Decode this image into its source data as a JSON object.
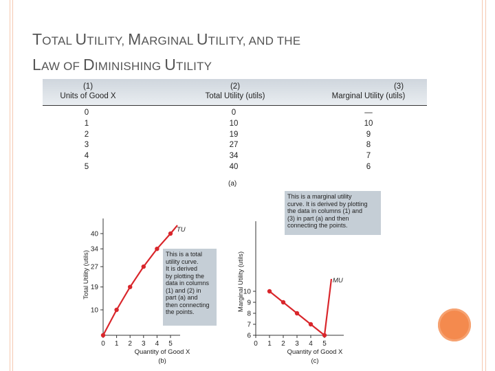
{
  "slide": {
    "title_line1_parts": [
      {
        "text": "T",
        "big": true
      },
      {
        "text": "OTAL ",
        "big": false
      },
      {
        "text": "U",
        "big": true
      },
      {
        "text": "TILITY, ",
        "big": false
      },
      {
        "text": "M",
        "big": true
      },
      {
        "text": "ARGINAL ",
        "big": false
      },
      {
        "text": "U",
        "big": true
      },
      {
        "text": "TILITY, AND THE",
        "big": false
      }
    ],
    "title_line2_parts": [
      {
        "text": "L",
        "big": true
      },
      {
        "text": "AW OF ",
        "big": false
      },
      {
        "text": "D",
        "big": true
      },
      {
        "text": "IMINISHING ",
        "big": false
      },
      {
        "text": "U",
        "big": true
      },
      {
        "text": "TILITY",
        "big": false
      }
    ],
    "colors": {
      "frame": "#f6c7ae",
      "circle": "#f48a4e",
      "curve": "#d9262b",
      "note_bg": "#c5ced6",
      "header_bg": "#dfe4e9"
    }
  },
  "table": {
    "headers": [
      {
        "num": "(1)",
        "label": "Units of Good X"
      },
      {
        "num": "(2)",
        "label": "Total Utility (utils)"
      },
      {
        "num": "(3)",
        "label": "Marginal Utility (utils)"
      }
    ],
    "col1": [
      "0",
      "1",
      "2",
      "3",
      "4",
      "5"
    ],
    "col2": [
      "0",
      "10",
      "19",
      "27",
      "34",
      "40"
    ],
    "col3": [
      "—",
      "10",
      "9",
      "8",
      "7",
      "6"
    ],
    "caption": "(a)"
  },
  "chart_data": [
    {
      "type": "line",
      "panel": "(b)",
      "x": [
        0,
        1,
        2,
        3,
        4,
        5
      ],
      "series": [
        {
          "name": "TU",
          "values": [
            0,
            10,
            19,
            27,
            34,
            40
          ]
        }
      ],
      "xlabel": "Quantity of Good X",
      "ylabel": "Total Utility (utils)",
      "xticks": [
        "0",
        "1",
        "2",
        "3",
        "4",
        "5"
      ],
      "yticks": [
        "10",
        "19",
        "27",
        "34",
        "40"
      ],
      "ytick_values": [
        10,
        19,
        27,
        34,
        40
      ],
      "annotation": [
        "This is a total",
        "utility curve.",
        "It is derived",
        "by plotting the",
        "data in columns",
        "(1) and (2) in",
        "part (a) and",
        "then connecting",
        "the points."
      ]
    },
    {
      "type": "line",
      "panel": "(c)",
      "x": [
        1,
        2,
        3,
        4,
        5
      ],
      "series": [
        {
          "name": "MU",
          "values": [
            10,
            9,
            8,
            7,
            6
          ]
        }
      ],
      "xlabel": "Quantity of Good X",
      "ylabel": "Marginal Utility (utils)",
      "xticks": [
        "0",
        "1",
        "2",
        "3",
        "4",
        "5"
      ],
      "yticks": [
        "10",
        "9",
        "8",
        "7",
        "6"
      ],
      "ytick_values": [
        10,
        9,
        8,
        7,
        6
      ],
      "annotation": [
        "This is a marginal utility",
        "curve. It is derived by plotting",
        "the data in columns (1) and",
        "(3) in part (a) and then",
        "connecting the points."
      ]
    }
  ]
}
